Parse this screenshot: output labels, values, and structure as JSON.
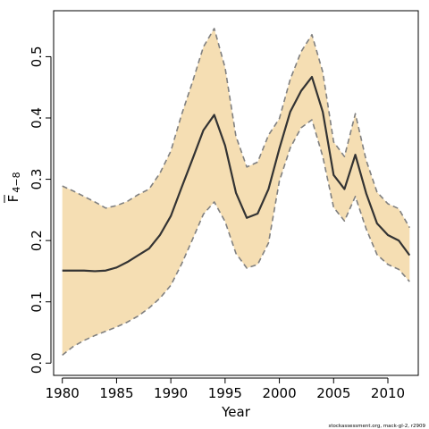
{
  "chart_data": {
    "type": "line",
    "xlabel": "Year",
    "ylabel": {
      "main": "F",
      "sub": "4−8"
    },
    "xlim": [
      1979.2,
      2012.8
    ],
    "ylim": [
      -0.02,
      0.575
    ],
    "xticks": [
      1980,
      1985,
      1990,
      1995,
      2000,
      2005,
      2010
    ],
    "yticks": [
      0.0,
      0.1,
      0.2,
      0.3,
      0.4,
      0.5
    ],
    "ytick_labels": [
      "0.0",
      "0.1",
      "0.2",
      "0.3",
      "0.4",
      "0.5"
    ],
    "grid": false,
    "band_color": "#f5deb3",
    "line_color": "#333333",
    "bound_color": "#808080",
    "x": [
      1980,
      1981,
      1982,
      1983,
      1984,
      1985,
      1986,
      1987,
      1988,
      1989,
      1990,
      1991,
      1992,
      1993,
      1994,
      1995,
      1996,
      1997,
      1998,
      1999,
      2000,
      2001,
      2002,
      2003,
      2004,
      2005,
      2006,
      2007,
      2008,
      2009,
      2010,
      2011,
      2012
    ],
    "series": [
      {
        "role": "estimate",
        "values": [
          0.151,
          0.151,
          0.151,
          0.15,
          0.151,
          0.156,
          0.165,
          0.176,
          0.187,
          0.209,
          0.24,
          0.287,
          0.333,
          0.38,
          0.405,
          0.355,
          0.278,
          0.237,
          0.244,
          0.284,
          0.35,
          0.41,
          0.444,
          0.467,
          0.41,
          0.307,
          0.284,
          0.34,
          0.277,
          0.228,
          0.209,
          0.2,
          0.176
        ]
      },
      {
        "role": "upper",
        "values": [
          0.289,
          0.281,
          0.272,
          0.263,
          0.253,
          0.257,
          0.264,
          0.275,
          0.284,
          0.31,
          0.346,
          0.406,
          0.459,
          0.516,
          0.546,
          0.482,
          0.37,
          0.32,
          0.328,
          0.372,
          0.399,
          0.463,
          0.508,
          0.536,
          0.475,
          0.361,
          0.337,
          0.407,
          0.331,
          0.279,
          0.26,
          0.252,
          0.221
        ]
      },
      {
        "role": "lower",
        "values": [
          0.013,
          0.027,
          0.037,
          0.045,
          0.052,
          0.059,
          0.067,
          0.077,
          0.09,
          0.106,
          0.127,
          0.162,
          0.202,
          0.243,
          0.263,
          0.231,
          0.179,
          0.155,
          0.161,
          0.196,
          0.297,
          0.351,
          0.384,
          0.397,
          0.337,
          0.254,
          0.232,
          0.272,
          0.219,
          0.177,
          0.161,
          0.153,
          0.133
        ]
      }
    ]
  },
  "credit": "stockassessment.org, mack-gl-2, r2909"
}
